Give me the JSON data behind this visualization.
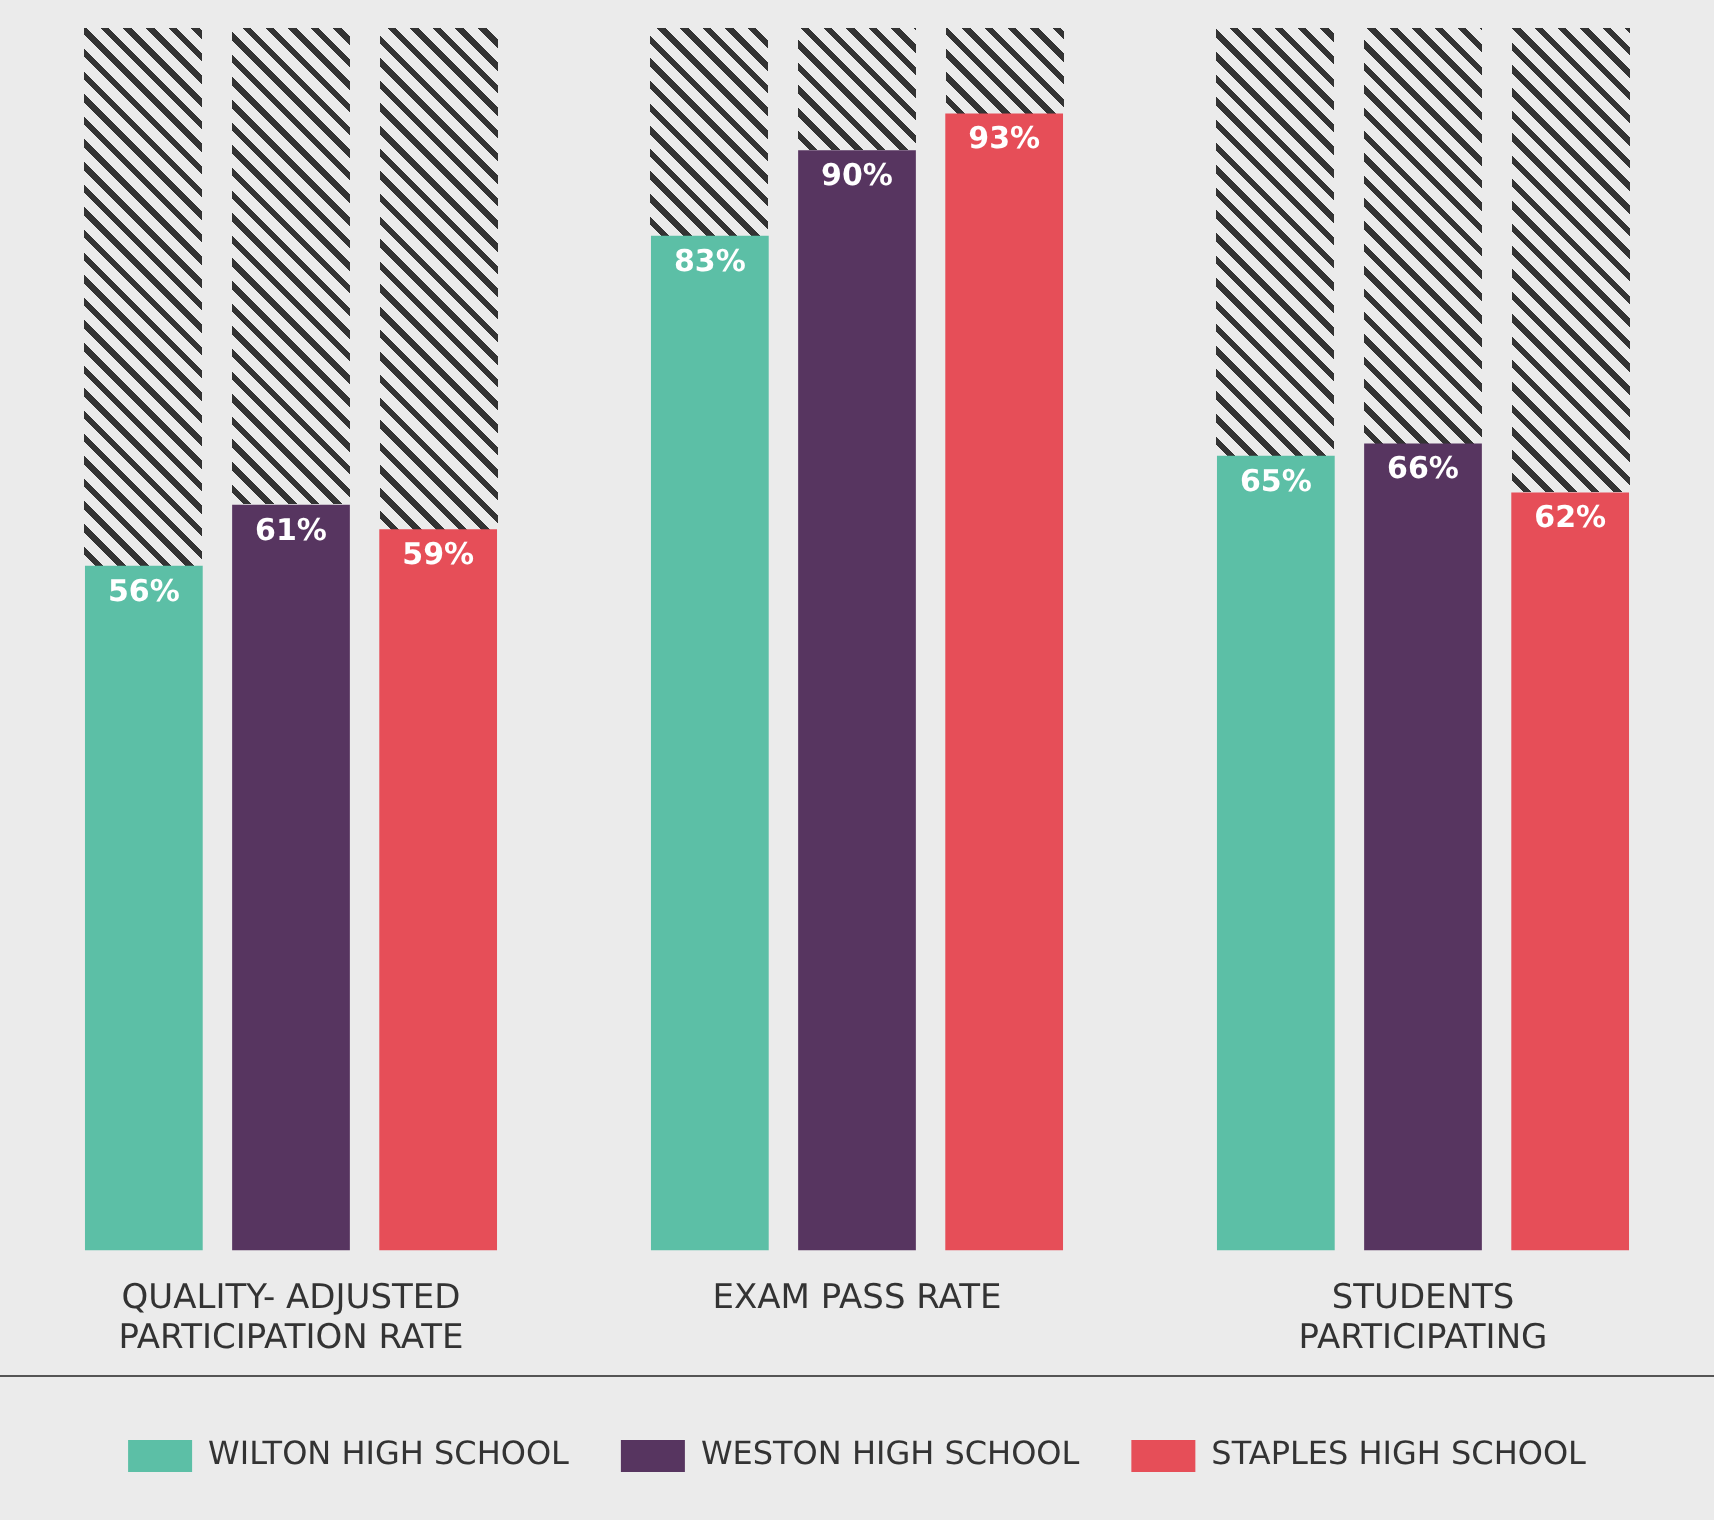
{
  "chart_data": {
    "type": "bar",
    "categories": [
      "QUALITY- ADJUSTED PARTICIPATION RATE",
      "EXAM PASS RATE",
      "STUDENTS PARTICIPATING"
    ],
    "series": [
      {
        "name": "WILTON HIGH SCHOOL",
        "color": "#5cbfa6",
        "values": [
          56,
          83,
          65
        ],
        "value_labels": [
          "56%",
          "83%",
          "65%"
        ]
      },
      {
        "name": "WESTON HIGH SCHOOL",
        "color": "#573560",
        "values": [
          61,
          90,
          66
        ],
        "value_labels": [
          "61%",
          "90%",
          "66%"
        ]
      },
      {
        "name": "STAPLES HIGH SCHOOL",
        "color": "#e64e58",
        "values": [
          59,
          93,
          62
        ],
        "value_labels": [
          "59%",
          "93%",
          "62%"
        ]
      }
    ],
    "tick_labels": "x",
    "legend": "bottom"
  }
}
